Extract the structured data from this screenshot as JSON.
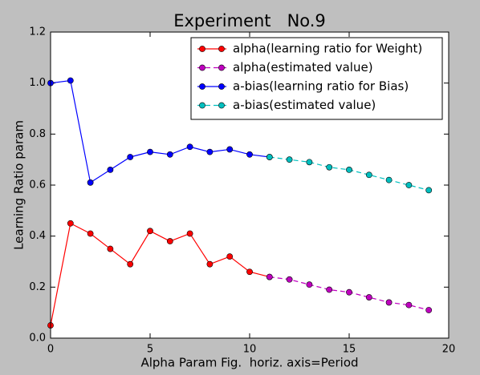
{
  "chart_data": {
    "type": "line",
    "title": "Experiment   No.9",
    "x_label": "Alpha Param Fig.  horiz. axis=Period",
    "y_label": "Learning Ratio param",
    "series": [
      {
        "name": "alpha(learning ratio for Weight)",
        "color": "#ff0000",
        "linestyle": "solid",
        "x": [
          0,
          1,
          2,
          3,
          4,
          5,
          6,
          7,
          8,
          9,
          10,
          11
        ],
        "values": [
          0.05,
          0.45,
          0.41,
          0.35,
          0.29,
          0.42,
          0.38,
          0.41,
          0.29,
          0.32,
          0.26,
          0.24
        ]
      },
      {
        "name": "alpha(estimated value)",
        "color": "#bf00bf",
        "linestyle": "dashed",
        "x": [
          11,
          12,
          13,
          14,
          15,
          16,
          17,
          18,
          19
        ],
        "values": [
          0.24,
          0.23,
          0.21,
          0.19,
          0.18,
          0.16,
          0.14,
          0.13,
          0.11
        ]
      },
      {
        "name": "a-bias(learning ratio for Bias)",
        "color": "#0000ff",
        "linestyle": "solid",
        "x": [
          0,
          1,
          2,
          3,
          4,
          5,
          6,
          7,
          8,
          9,
          10,
          11
        ],
        "values": [
          1.0,
          1.01,
          0.61,
          0.66,
          0.71,
          0.73,
          0.72,
          0.75,
          0.73,
          0.74,
          0.72,
          0.71
        ]
      },
      {
        "name": "a-bias(estimated value)",
        "color": "#00bfbf",
        "linestyle": "dashed",
        "x": [
          11,
          12,
          13,
          14,
          15,
          16,
          17,
          18,
          19
        ],
        "values": [
          0.71,
          0.7,
          0.69,
          0.67,
          0.66,
          0.64,
          0.62,
          0.6,
          0.58
        ]
      }
    ],
    "xlim": [
      0,
      20
    ],
    "xticks": [
      0,
      5,
      10,
      15,
      20
    ],
    "ylim": [
      0,
      1.2
    ],
    "yticks": [
      {
        "value": 0,
        "label": "0.0"
      },
      0.2,
      0.4,
      0.6,
      0.8,
      {
        "value": 1,
        "label": "1.0"
      },
      1.2
    ],
    "legend": "upper right"
  }
}
